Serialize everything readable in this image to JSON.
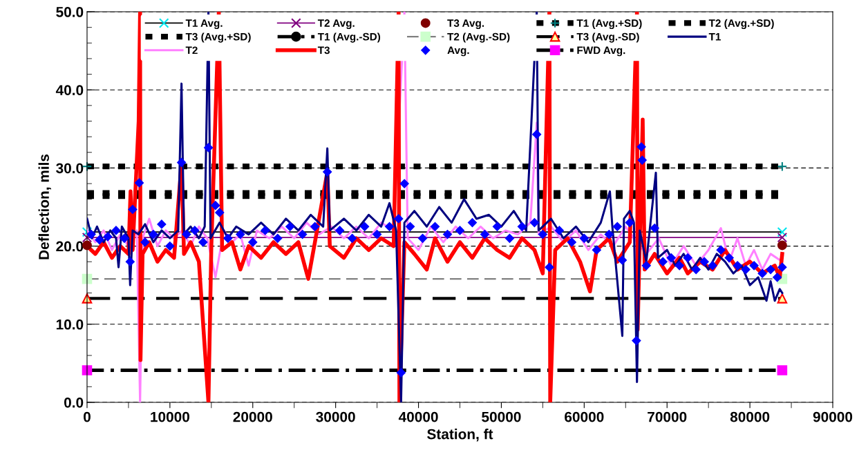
{
  "chart_data": {
    "type": "line",
    "xlabel": "Station, ft",
    "ylabel": "Deflection, mils",
    "xlim": [
      0,
      90000
    ],
    "xticks": [
      0,
      10000,
      20000,
      30000,
      40000,
      50000,
      60000,
      70000,
      80000,
      90000
    ],
    "ylim": [
      0,
      50
    ],
    "yticks": [
      {
        "value": 0,
        "label": "0.0"
      },
      {
        "value": 10,
        "label": "10.0"
      },
      {
        "value": 20,
        "label": "20.0"
      },
      {
        "value": 30,
        "label": "30.0"
      },
      {
        "value": 40,
        "label": "40.0"
      },
      {
        "value": 50,
        "label": "50.0"
      }
    ],
    "grid": "y",
    "legend": "top",
    "series": [
      {
        "name": "T1 Avg.",
        "color": "#000000",
        "marker": "cross",
        "colors": [
          "#00e5ee",
          "#00e5ee"
        ],
        "line_style": "solid",
        "x": [
          0,
          83900
        ],
        "values": [
          21.8,
          21.8
        ]
      },
      {
        "name": "T2 Avg.",
        "color": "#800080",
        "marker": "cross",
        "colors": [
          "#800080",
          "#800080"
        ],
        "line_style": "solid",
        "x": [
          0,
          83900
        ],
        "values": [
          21.1,
          21.1
        ]
      },
      {
        "name": "T3 Avg.",
        "type": "scatter",
        "color": "#800000",
        "marker": "circle",
        "x": [
          0,
          83900
        ],
        "values": [
          20.1,
          20.1
        ]
      },
      {
        "name": "T1 (Avg.+SD)",
        "color": "#000000",
        "marker": "plus",
        "colors": [
          "#008080",
          "#008080"
        ],
        "line_style": "dotted",
        "x": [
          0,
          83900
        ],
        "values": [
          30.2,
          30.2
        ]
      },
      {
        "name": "T2 (Avg.+SD)",
        "color": "#000000",
        "marker": "none",
        "line_style": "dotted",
        "x": [
          0,
          83900
        ],
        "values": [
          26.4,
          26.4
        ]
      },
      {
        "name": "T3 (Avg.+SD)",
        "color": "#000000",
        "marker": "none",
        "line_style": "dotted",
        "x": [
          0,
          83900
        ],
        "values": [
          26.8,
          26.8
        ]
      },
      {
        "name": "T1 (Avg.-SD)",
        "color": "#000000",
        "marker": "circle",
        "line_style": "dashdot"
      },
      {
        "name": "T2 (Avg.-SD)",
        "color": "#808080",
        "marker": "square",
        "colors": [
          "#ccffcc",
          "#ccffcc"
        ],
        "line_style": "dashed",
        "x": [
          0,
          83900
        ],
        "values": [
          15.8,
          15.8
        ]
      },
      {
        "name": "T3 (Avg.-SD)",
        "color": "#000000",
        "marker": "triangle",
        "colors": [
          "#ffff99",
          "#ffff99"
        ],
        "line_style": "dashed",
        "x": [
          0,
          83900
        ],
        "values": [
          13.3,
          13.3
        ]
      },
      {
        "name": "T1",
        "color": "#000080",
        "marker": "none",
        "line_style": "solid",
        "x": [
          0,
          600,
          1200,
          2000,
          2800,
          3500,
          3800,
          4200,
          5000,
          5200,
          5500,
          6200,
          7000,
          8000,
          9000,
          10000,
          11000,
          11400,
          11700,
          12500,
          13500,
          14200,
          14650,
          14900,
          16000,
          17000,
          18000,
          19500,
          21000,
          22500,
          24000,
          25500,
          27000,
          28500,
          29000,
          29300,
          31000,
          32500,
          34000,
          35500,
          36500,
          37300,
          37900,
          38300,
          39500,
          41000,
          42500,
          44000,
          45500,
          47000,
          48500,
          50000,
          51500,
          53000,
          54270,
          54500,
          56000,
          57500,
          59000,
          60500,
          62000,
          63100,
          63400,
          64600,
          64800,
          65500,
          66000,
          66370,
          66700,
          67500,
          68650,
          68900,
          70000,
          71000,
          72000,
          73000,
          74000,
          75000,
          76000,
          77000,
          78000,
          79000,
          80000,
          81000,
          82000,
          82500,
          83000,
          83600,
          83900
        ],
        "values": [
          23.5,
          21,
          22.5,
          20.5,
          22,
          21,
          17.3,
          22.5,
          21,
          15,
          22,
          21.5,
          22.8,
          20.5,
          22,
          21,
          22,
          40.8,
          21.5,
          22.5,
          21,
          22.5,
          50,
          21,
          23,
          21,
          22.5,
          21.5,
          23,
          21.5,
          23.5,
          22,
          24,
          22.5,
          32.5,
          22,
          23.5,
          22,
          24,
          22.5,
          25.5,
          22,
          0,
          23,
          24.5,
          22.5,
          25,
          23,
          26,
          23.5,
          24,
          22.5,
          24.5,
          22,
          50,
          22,
          23.5,
          21,
          22.5,
          20.5,
          23,
          27,
          22.5,
          8.5,
          23.5,
          24.5,
          23,
          2.6,
          22,
          18,
          29.4,
          18.5,
          19.5,
          17.5,
          19,
          17,
          18.5,
          17,
          19,
          18,
          16.5,
          17.5,
          15,
          16,
          13,
          15.5,
          13,
          14.5,
          14
        ]
      },
      {
        "name": "T2",
        "color": "#ff80ff",
        "marker": "none",
        "line_style": "solid",
        "x": [
          0,
          1000,
          2000,
          3000,
          4000,
          5000,
          6000,
          6400,
          6700,
          7500,
          8500,
          9500,
          10500,
          11500,
          12500,
          13500,
          14500,
          15500,
          16500,
          17500,
          18500,
          19500,
          20500,
          22000,
          23500,
          25000,
          26500,
          28000,
          29500,
          31000,
          32500,
          34000,
          35500,
          37000,
          38300,
          38700,
          40000,
          41500,
          43000,
          44500,
          46000,
          47500,
          49000,
          50500,
          52000,
          53500,
          54270,
          54500,
          56000,
          57500,
          59000,
          60500,
          62000,
          63500,
          65000,
          66000,
          67500,
          69000,
          70500,
          72000,
          73500,
          75000,
          76500,
          77500,
          78500,
          79500,
          80500,
          81500,
          82500,
          83900
        ],
        "values": [
          22,
          20.5,
          22,
          19.5,
          21.5,
          20,
          22,
          0,
          21,
          23.5,
          20,
          22,
          21,
          22,
          20,
          22.5,
          21,
          16,
          22,
          20.5,
          21.5,
          17.5,
          22,
          21,
          22.5,
          21,
          23,
          21.5,
          22.5,
          21,
          22.5,
          21,
          23,
          22,
          50,
          21,
          19.5,
          22.5,
          20.5,
          22.5,
          21,
          22.5,
          21,
          22,
          21.5,
          23,
          35.8,
          21.5,
          22.5,
          20.5,
          22,
          19.5,
          21.5,
          20,
          22.5,
          21,
          19,
          21,
          17.5,
          20,
          17.5,
          19.5,
          22.3,
          18,
          21,
          17.5,
          19.5,
          17,
          19,
          18
        ]
      },
      {
        "name": "T3",
        "color": "#ff0000",
        "marker": "none",
        "line_style": "solid",
        "x": [
          0,
          1000,
          2000,
          3000,
          4000,
          5000,
          5250,
          5500,
          6230,
          6400,
          6450,
          6700,
          7500,
          8500,
          9500,
          10500,
          11400,
          11700,
          12500,
          13500,
          14650,
          15000,
          15900,
          16300,
          17500,
          18500,
          19500,
          21000,
          22500,
          24000,
          25500,
          26700,
          27500,
          29000,
          29300,
          31000,
          32500,
          34000,
          35500,
          37000,
          37600,
          37700,
          38300,
          39500,
          41000,
          42000,
          43500,
          45000,
          46500,
          48000,
          49500,
          51000,
          52500,
          54000,
          55000,
          55800,
          55900,
          56500,
          58000,
          59500,
          60700,
          61500,
          63000,
          64000,
          65500,
          66370,
          66450,
          67060,
          67300,
          68500,
          70000,
          71500,
          72500,
          74000,
          75500,
          77000,
          78500,
          80000,
          81500,
          83000,
          83600,
          83900
        ],
        "values": [
          20,
          19,
          20.5,
          18.5,
          20,
          19,
          27,
          19.5,
          36,
          50,
          5.4,
          19,
          20.5,
          18,
          19.5,
          18.5,
          30.6,
          19,
          20.5,
          18,
          0,
          20,
          50,
          19.5,
          20.5,
          17,
          20,
          18.5,
          20.5,
          19,
          20.5,
          15.8,
          20.5,
          29.5,
          20,
          18.5,
          21,
          19.5,
          21,
          20,
          50,
          0,
          20.5,
          19,
          17,
          21,
          18,
          20.5,
          18.5,
          21,
          19.5,
          18.5,
          21,
          19.5,
          16.5,
          50,
          0,
          19.5,
          21,
          18,
          14.2,
          19.5,
          21,
          18,
          20.5,
          50,
          9.3,
          36.2,
          17,
          19,
          16.5,
          18.5,
          16.5,
          18,
          17,
          19.5,
          17,
          18,
          16.5,
          17.5,
          16,
          19
        ]
      },
      {
        "name": "Avg.",
        "type": "scatter",
        "color": "#0000ff",
        "marker": "diamond",
        "x": [
          500,
          1500,
          2500,
          3500,
          4500,
          5200,
          5500,
          6300,
          7000,
          8000,
          9000,
          10000,
          11400,
          12000,
          13000,
          14000,
          14650,
          15500,
          16000,
          17000,
          18500,
          20000,
          21500,
          23000,
          24500,
          26000,
          27500,
          29000,
          30500,
          32000,
          33500,
          35000,
          36500,
          37600,
          37900,
          38300,
          39000,
          40500,
          42000,
          43500,
          45000,
          46500,
          48000,
          49500,
          51000,
          52500,
          54000,
          54270,
          55000,
          55800,
          57000,
          58500,
          60000,
          61500,
          63000,
          64000,
          64600,
          65500,
          66300,
          66900,
          67000,
          67500,
          68500,
          69500,
          70500,
          71500,
          72500,
          73500,
          74500,
          75500,
          76500,
          77500,
          78500,
          79500,
          80500,
          81500,
          82500,
          83300,
          83900
        ],
        "values": [
          21.5,
          20.8,
          21.2,
          22,
          21,
          18,
          24.7,
          28.1,
          20.5,
          21.5,
          22.8,
          20,
          30.7,
          21.5,
          22,
          20.5,
          32.6,
          25.2,
          24.3,
          21,
          21.5,
          20.5,
          22,
          21,
          22.5,
          21.5,
          22.5,
          29.5,
          22,
          21,
          22.5,
          21.5,
          22.5,
          23.5,
          3.8,
          28,
          22.5,
          21,
          22.5,
          21.5,
          22,
          23,
          21.5,
          22.5,
          21,
          22.5,
          23,
          34.3,
          21.5,
          17.3,
          22,
          20.5,
          21,
          19.5,
          21.5,
          22.5,
          18.2,
          23,
          7.9,
          32.7,
          31,
          17.5,
          22.3,
          18,
          18.5,
          17.5,
          18.5,
          17,
          18,
          17.5,
          19.5,
          18.5,
          17.5,
          17,
          17.5,
          16.5,
          17,
          16,
          17.3
        ]
      },
      {
        "name": "FWD Avg.",
        "color": "#000000",
        "marker": "square",
        "colors": [
          "#ff00ff",
          "#ff00ff"
        ],
        "line_style": "dashdot",
        "x": [
          0,
          83900
        ],
        "values": [
          4.1,
          4.1
        ]
      }
    ]
  }
}
